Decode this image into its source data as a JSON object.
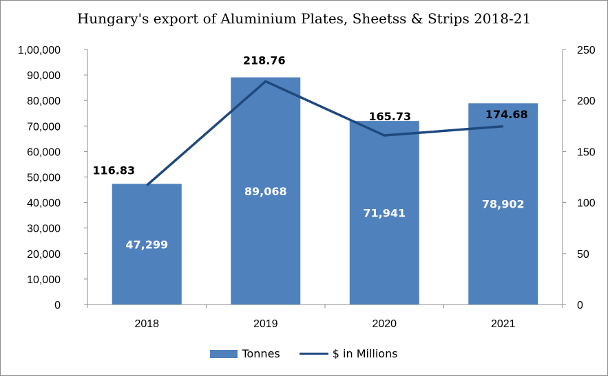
{
  "chart_data": {
    "type": "bar",
    "title": "Hungary's export of Aluminium Plates, Sheetss & Strips 2018-21",
    "categories": [
      "2018",
      "2019",
      "2020",
      "2021"
    ],
    "series": [
      {
        "name": "Tonnes",
        "type": "bar",
        "axis": "left",
        "values": [
          47299,
          89068,
          71941,
          78902
        ],
        "labels": [
          "47,299",
          "89,068",
          "71,941",
          "78,902"
        ],
        "color": "#4f81bd"
      },
      {
        "name": "$ in Millions",
        "type": "line",
        "axis": "right",
        "values": [
          116.83,
          218.76,
          165.73,
          174.68
        ],
        "labels": [
          "116.83",
          "218.76",
          "165.73",
          "174.68"
        ],
        "color": "#1f497d"
      }
    ],
    "y_left": {
      "min": 0,
      "max": 100000,
      "ticks": [
        0,
        10000,
        20000,
        30000,
        40000,
        50000,
        60000,
        70000,
        80000,
        90000,
        100000
      ],
      "tick_labels": [
        "0",
        "10,000",
        "20,000",
        "30,000",
        "40,000",
        "50,000",
        "60,000",
        "70,000",
        "80,000",
        "90,000",
        "1,00,000"
      ]
    },
    "y_right": {
      "min": 0,
      "max": 250,
      "ticks": [
        0,
        50,
        100,
        150,
        200,
        250
      ],
      "tick_labels": [
        "0",
        "50",
        "100",
        "150",
        "200",
        "250"
      ]
    },
    "grid": false,
    "legend_position": "bottom"
  }
}
